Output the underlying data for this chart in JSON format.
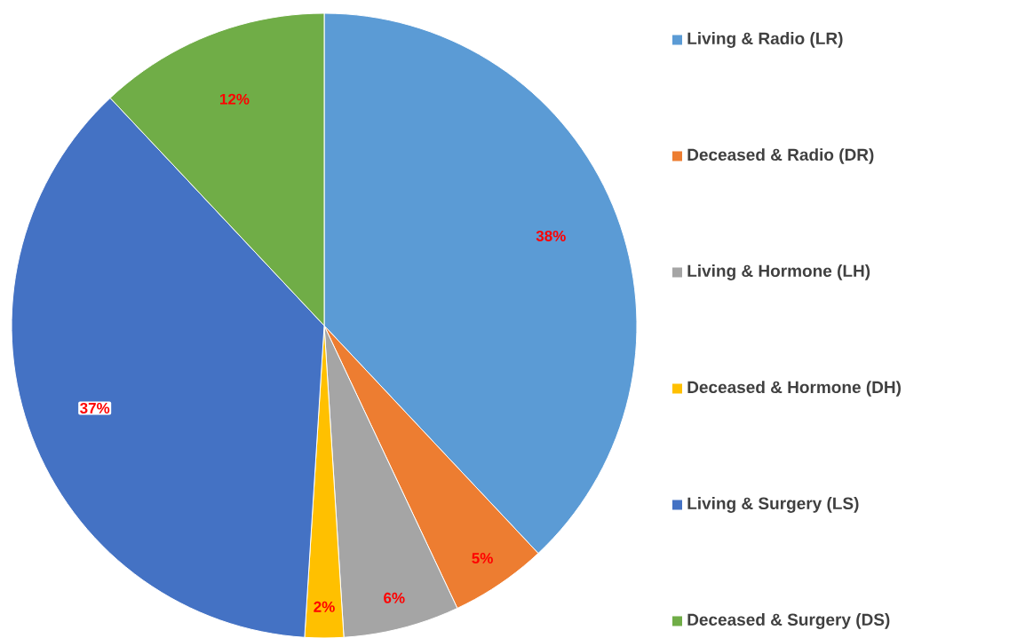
{
  "chart_data": {
    "type": "pie",
    "categories": [
      "Living & Radio (LR)",
      "Deceased & Radio (DR)",
      "Living & Hormone (LH)",
      "Deceased & Hormone (DH)",
      "Living & Surgery (LS)",
      "Deceased & Surgery (DS)"
    ],
    "values": [
      38,
      5,
      6,
      2,
      37,
      12
    ],
    "value_labels": [
      "38%",
      "5%",
      "6%",
      "2%",
      "37%",
      "12%"
    ],
    "colors": [
      "#5b9bd5",
      "#ed7d31",
      "#a5a5a5",
      "#ffc000",
      "#4472c4",
      "#70ad47"
    ],
    "legend": "right"
  }
}
